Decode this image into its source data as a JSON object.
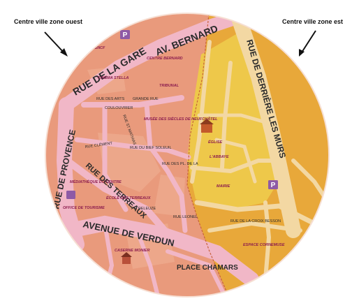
{
  "zones": {
    "west": "Centre ville zone ouest",
    "east": "Centre ville zone est"
  },
  "colors": {
    "west_zone": "#e99a7c",
    "east_zone": "#e8a83a",
    "historic_core": "#eec84a",
    "avenue": "#f1b7c7",
    "street_east": "#f3d8a3",
    "poi_label": "#8c1d4e",
    "parking": "#8e5aa6"
  },
  "icons": [
    "parking-icon",
    "parking-icon",
    "arrow-icon",
    "arrow-icon",
    "building-icon"
  ],
  "streets": {
    "rue_de_la_gare": "RUE DE LA GARE",
    "av_bernard": "AV. BERNARD",
    "rue_de_provence": "RUE DE PROVENCE",
    "rue_des_terreaux": "RUE DES TERREAUX",
    "avenue_de_verdun": "AVENUE DE VERDUN",
    "rue_de_derriere_les_murs": "RUE DE DERRIÈRE LES MURS",
    "rue_des_arts": "RUE DES ARTS",
    "grande_rue": "GRANDE RUE",
    "coulouvrier": "COULOUVRIER",
    "rue_clement": "RUE CLÉMENT",
    "rue_st_mathias": "RUE ST MATHIAS",
    "rue_du_bief_soleuil": "RUE DU BIEF SOLEUIL",
    "rue_des_pl_de_la": "RUE DES PL. DE LA",
    "rue_de_la_croix_rousse": "RUE DE LA CROIX BESSON",
    "place_chamars": "PLACE CHAMARS",
    "pl_deleuze": "PL. DELEUZE",
    "rue_leonel": "RUE LEONEL"
  },
  "places": {
    "gare": "GARE SNCF",
    "cinema": "CINÉMA STELLA",
    "centre_bernard": "CENTRE BERNARD",
    "tribunal": "TRIBUNAL",
    "musee": "MUSÉE DES SIÈCLES DE NEUFCHÂTEL",
    "mediatheque": "MÉDIATHÈQUE DU CENTRE",
    "office_tourisme": "OFFICE DE TOURISME",
    "ecole": "ÉCOLE DES TERREAUX",
    "caserne": "CASERNE MONIER",
    "eglise": "ÉGLISE",
    "abbaye": "L'ABBAYE",
    "mairie": "MAIRIE",
    "espace": "ESPACE CORNEMUSE"
  }
}
